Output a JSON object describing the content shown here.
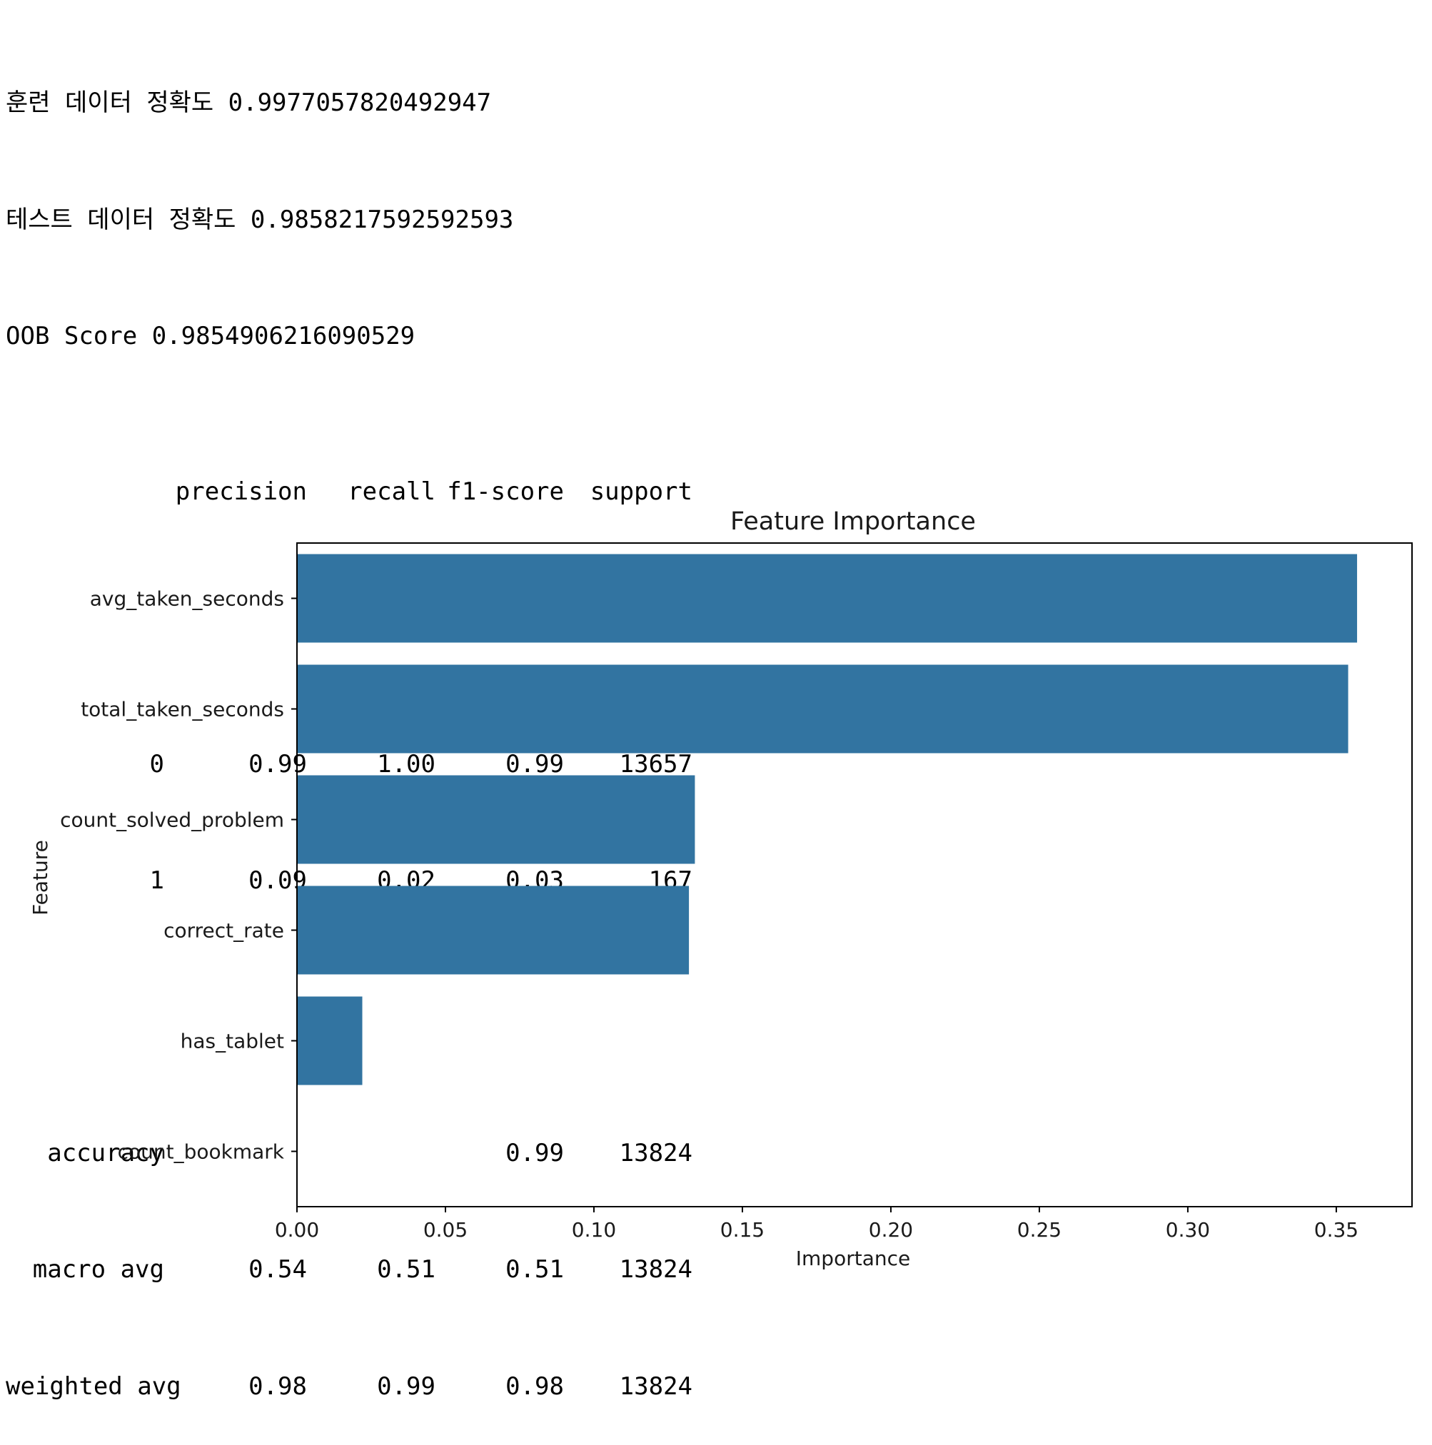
{
  "console": {
    "lines": [
      "훈련 데이터 정확도 0.9977057820492947",
      "테스트 데이터 정확도 0.9858217592592593",
      "OOB Score 0.9854906216090529"
    ],
    "report": {
      "headers": [
        "",
        "precision",
        "recall",
        "f1-score",
        "support"
      ],
      "rows": [
        [
          "0",
          "0.99",
          "1.00",
          "0.99",
          "13657"
        ],
        [
          "1",
          "0.09",
          "0.02",
          "0.03",
          "167"
        ],
        [
          "accuracy",
          "",
          "",
          "0.99",
          "13824"
        ],
        [
          "macro avg",
          "0.54",
          "0.51",
          "0.51",
          "13824"
        ],
        [
          "weighted avg",
          "0.98",
          "0.99",
          "0.98",
          "13824"
        ]
      ]
    }
  },
  "chart_data": {
    "type": "bar",
    "orientation": "horizontal",
    "title": "Feature Importance",
    "xlabel": "Importance",
    "ylabel": "Feature",
    "categories": [
      "avg_taken_seconds",
      "total_taken_seconds",
      "count_solved_problem",
      "correct_rate",
      "has_tablet",
      "count_bookmark"
    ],
    "values": [
      0.357,
      0.354,
      0.134,
      0.132,
      0.022,
      0.0
    ],
    "xlim": [
      0.0,
      0.3755
    ],
    "xticks": [
      "0.00",
      "0.05",
      "0.10",
      "0.15",
      "0.20",
      "0.25",
      "0.30",
      "0.35"
    ],
    "bar_color": "#3274a1",
    "grid": false
  }
}
